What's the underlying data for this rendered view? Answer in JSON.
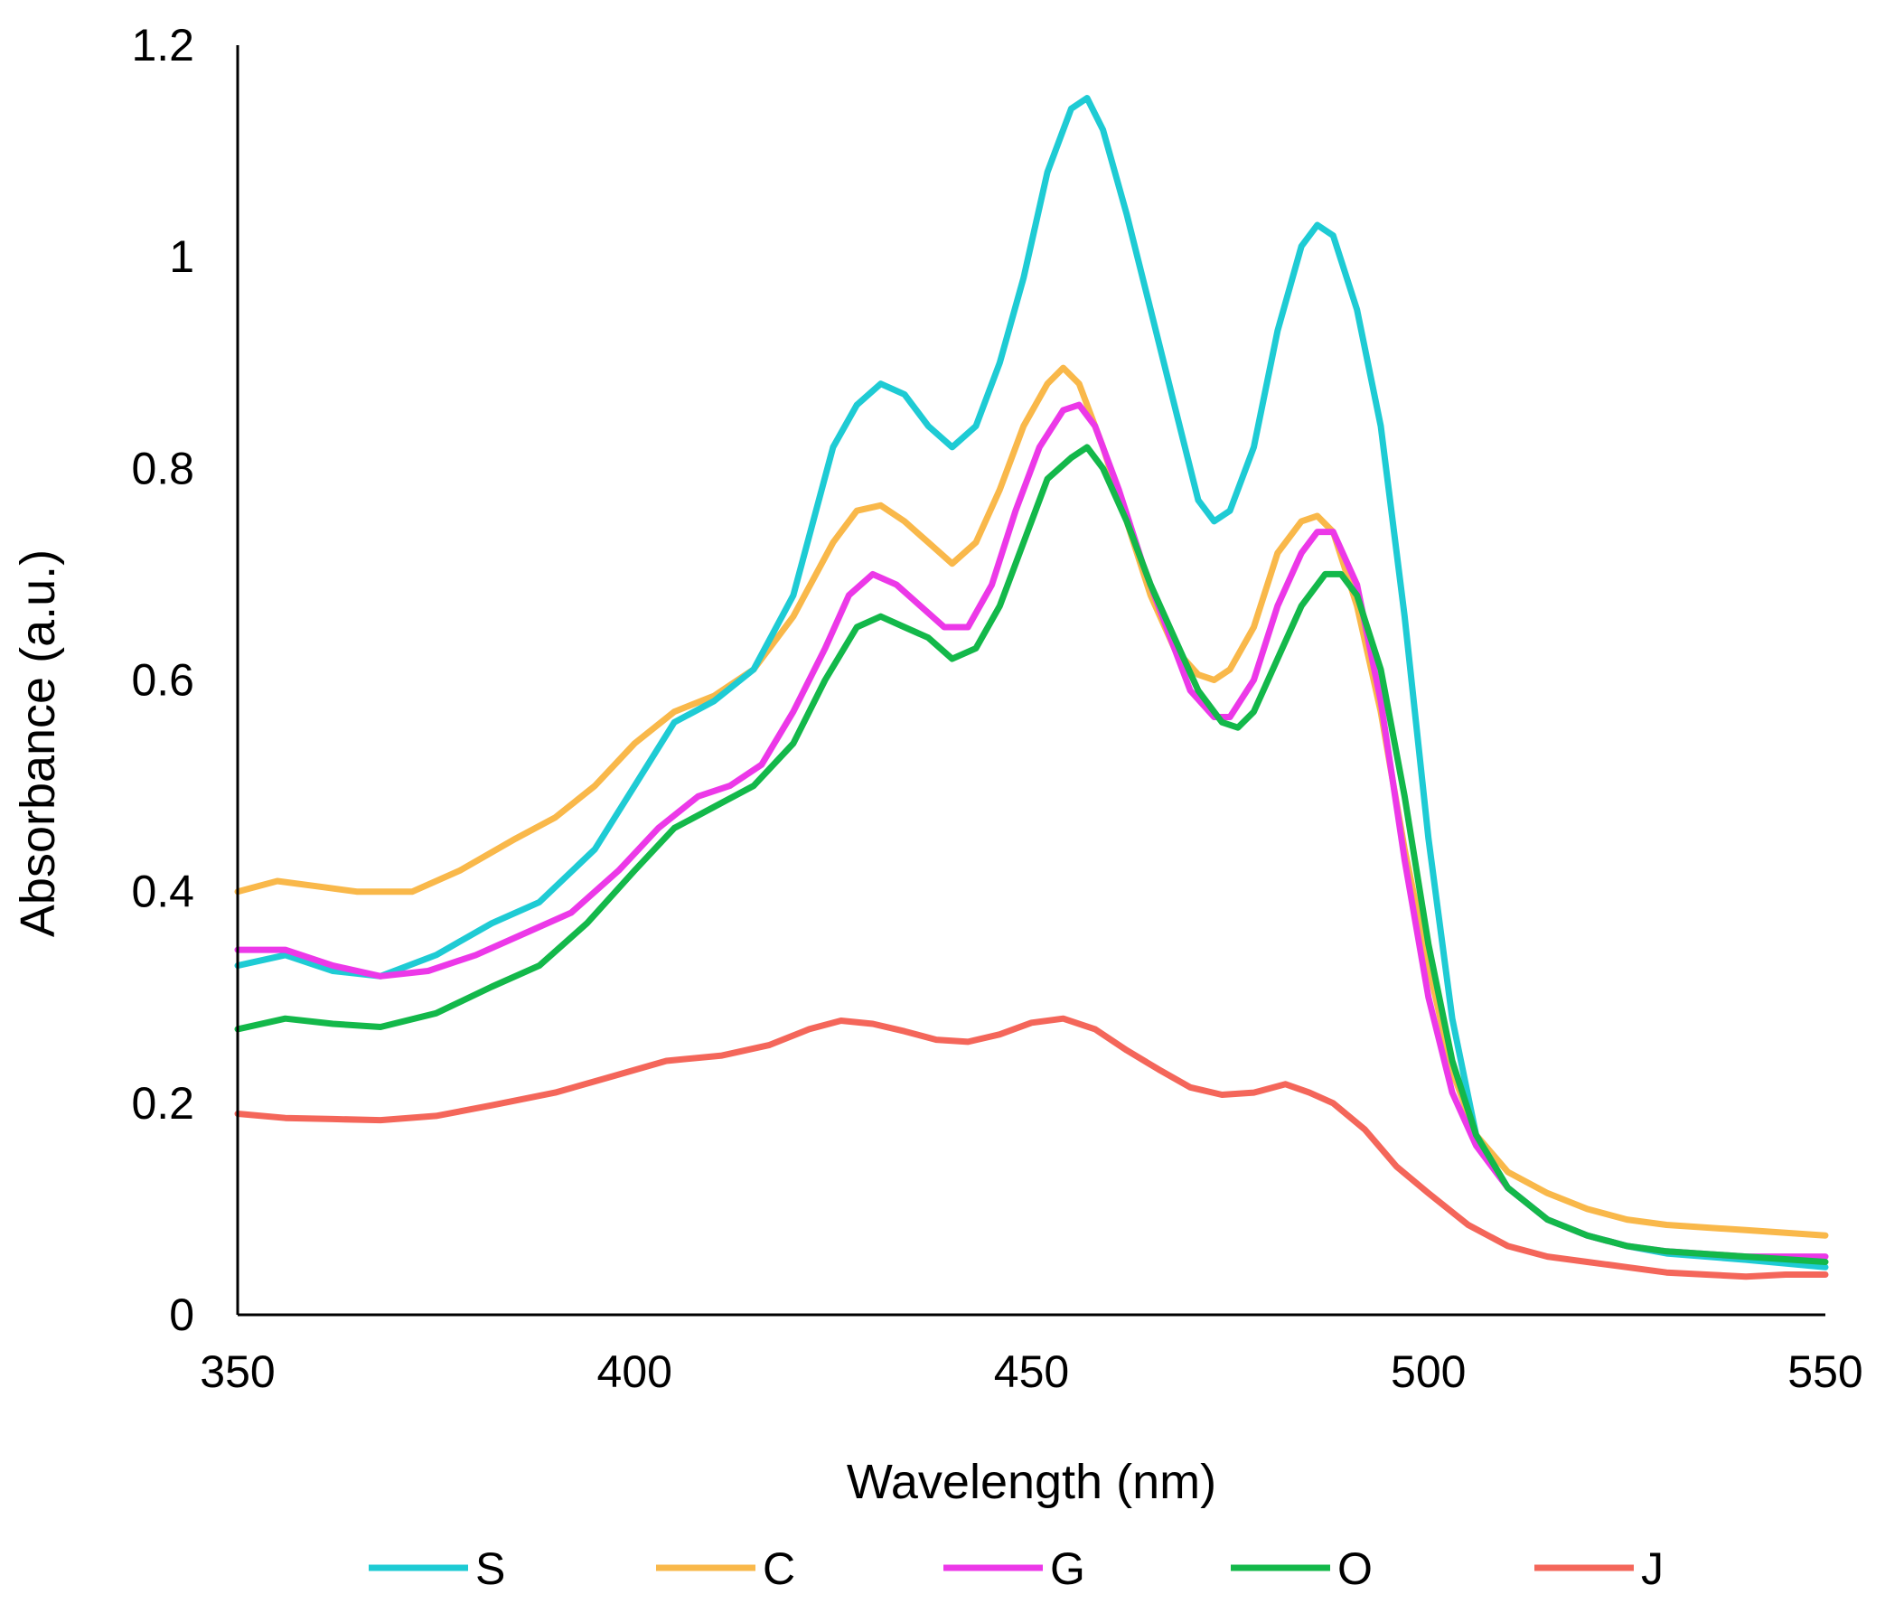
{
  "chart_data": {
    "type": "line",
    "xlabel": "Wavelength (nm)",
    "ylabel": "Absorbance (a.u.)",
    "xlim": [
      350,
      550
    ],
    "ylim": [
      0,
      1.2
    ],
    "xticks": [
      "350",
      "400",
      "450",
      "500",
      "550"
    ],
    "yticks": [
      "0",
      "0.2",
      "0.4",
      "0.6",
      "0.8",
      "1",
      "1.2"
    ],
    "grid": false,
    "legend_position": "bottom",
    "series": [
      {
        "name": "S",
        "color": "#1ecbd4",
        "points": [
          [
            350,
            0.33
          ],
          [
            356,
            0.34
          ],
          [
            362,
            0.325
          ],
          [
            368,
            0.32
          ],
          [
            375,
            0.34
          ],
          [
            382,
            0.37
          ],
          [
            388,
            0.39
          ],
          [
            395,
            0.44
          ],
          [
            400,
            0.5
          ],
          [
            405,
            0.56
          ],
          [
            410,
            0.58
          ],
          [
            415,
            0.61
          ],
          [
            420,
            0.68
          ],
          [
            425,
            0.82
          ],
          [
            428,
            0.86
          ],
          [
            431,
            0.88
          ],
          [
            434,
            0.87
          ],
          [
            437,
            0.84
          ],
          [
            440,
            0.82
          ],
          [
            443,
            0.84
          ],
          [
            446,
            0.9
          ],
          [
            449,
            0.98
          ],
          [
            452,
            1.08
          ],
          [
            455,
            1.14
          ],
          [
            457,
            1.15
          ],
          [
            459,
            1.12
          ],
          [
            462,
            1.04
          ],
          [
            465,
            0.95
          ],
          [
            468,
            0.86
          ],
          [
            471,
            0.77
          ],
          [
            473,
            0.75
          ],
          [
            475,
            0.76
          ],
          [
            478,
            0.82
          ],
          [
            481,
            0.93
          ],
          [
            484,
            1.01
          ],
          [
            486,
            1.03
          ],
          [
            488,
            1.02
          ],
          [
            491,
            0.95
          ],
          [
            494,
            0.84
          ],
          [
            497,
            0.66
          ],
          [
            500,
            0.45
          ],
          [
            503,
            0.28
          ],
          [
            506,
            0.17
          ],
          [
            510,
            0.12
          ],
          [
            515,
            0.09
          ],
          [
            520,
            0.075
          ],
          [
            525,
            0.065
          ],
          [
            530,
            0.058
          ],
          [
            540,
            0.052
          ],
          [
            550,
            0.045
          ]
        ]
      },
      {
        "name": "C",
        "color": "#f9b84a",
        "points": [
          [
            350,
            0.4
          ],
          [
            355,
            0.41
          ],
          [
            360,
            0.405
          ],
          [
            365,
            0.4
          ],
          [
            372,
            0.4
          ],
          [
            378,
            0.42
          ],
          [
            385,
            0.45
          ],
          [
            390,
            0.47
          ],
          [
            395,
            0.5
          ],
          [
            400,
            0.54
          ],
          [
            405,
            0.57
          ],
          [
            410,
            0.585
          ],
          [
            415,
            0.61
          ],
          [
            420,
            0.66
          ],
          [
            425,
            0.73
          ],
          [
            428,
            0.76
          ],
          [
            431,
            0.765
          ],
          [
            434,
            0.75
          ],
          [
            437,
            0.73
          ],
          [
            440,
            0.71
          ],
          [
            443,
            0.73
          ],
          [
            446,
            0.78
          ],
          [
            449,
            0.84
          ],
          [
            452,
            0.88
          ],
          [
            454,
            0.895
          ],
          [
            456,
            0.88
          ],
          [
            459,
            0.82
          ],
          [
            462,
            0.75
          ],
          [
            465,
            0.68
          ],
          [
            468,
            0.63
          ],
          [
            471,
            0.605
          ],
          [
            473,
            0.6
          ],
          [
            475,
            0.61
          ],
          [
            478,
            0.65
          ],
          [
            481,
            0.72
          ],
          [
            484,
            0.75
          ],
          [
            486,
            0.755
          ],
          [
            488,
            0.74
          ],
          [
            491,
            0.67
          ],
          [
            494,
            0.57
          ],
          [
            497,
            0.44
          ],
          [
            500,
            0.33
          ],
          [
            503,
            0.23
          ],
          [
            506,
            0.17
          ],
          [
            510,
            0.135
          ],
          [
            515,
            0.115
          ],
          [
            520,
            0.1
          ],
          [
            525,
            0.09
          ],
          [
            530,
            0.085
          ],
          [
            540,
            0.08
          ],
          [
            550,
            0.075
          ]
        ]
      },
      {
        "name": "G",
        "color": "#ec38e8",
        "points": [
          [
            350,
            0.345
          ],
          [
            356,
            0.345
          ],
          [
            362,
            0.33
          ],
          [
            368,
            0.32
          ],
          [
            374,
            0.325
          ],
          [
            380,
            0.34
          ],
          [
            386,
            0.36
          ],
          [
            392,
            0.38
          ],
          [
            398,
            0.42
          ],
          [
            403,
            0.46
          ],
          [
            408,
            0.49
          ],
          [
            412,
            0.5
          ],
          [
            416,
            0.52
          ],
          [
            420,
            0.57
          ],
          [
            424,
            0.63
          ],
          [
            427,
            0.68
          ],
          [
            430,
            0.7
          ],
          [
            433,
            0.69
          ],
          [
            436,
            0.67
          ],
          [
            439,
            0.65
          ],
          [
            442,
            0.65
          ],
          [
            445,
            0.69
          ],
          [
            448,
            0.76
          ],
          [
            451,
            0.82
          ],
          [
            454,
            0.855
          ],
          [
            456,
            0.86
          ],
          [
            458,
            0.84
          ],
          [
            461,
            0.78
          ],
          [
            464,
            0.71
          ],
          [
            467,
            0.65
          ],
          [
            470,
            0.59
          ],
          [
            473,
            0.565
          ],
          [
            475,
            0.565
          ],
          [
            478,
            0.6
          ],
          [
            481,
            0.67
          ],
          [
            484,
            0.72
          ],
          [
            486,
            0.74
          ],
          [
            488,
            0.74
          ],
          [
            491,
            0.69
          ],
          [
            494,
            0.58
          ],
          [
            497,
            0.43
          ],
          [
            500,
            0.3
          ],
          [
            503,
            0.21
          ],
          [
            506,
            0.16
          ],
          [
            510,
            0.12
          ],
          [
            515,
            0.09
          ],
          [
            520,
            0.075
          ],
          [
            525,
            0.065
          ],
          [
            530,
            0.06
          ],
          [
            540,
            0.055
          ],
          [
            550,
            0.055
          ]
        ]
      },
      {
        "name": "O",
        "color": "#13b84a",
        "points": [
          [
            350,
            0.27
          ],
          [
            356,
            0.28
          ],
          [
            362,
            0.275
          ],
          [
            368,
            0.272
          ],
          [
            375,
            0.285
          ],
          [
            382,
            0.31
          ],
          [
            388,
            0.33
          ],
          [
            394,
            0.37
          ],
          [
            400,
            0.42
          ],
          [
            405,
            0.46
          ],
          [
            410,
            0.48
          ],
          [
            415,
            0.5
          ],
          [
            420,
            0.54
          ],
          [
            424,
            0.6
          ],
          [
            428,
            0.65
          ],
          [
            431,
            0.66
          ],
          [
            434,
            0.65
          ],
          [
            437,
            0.64
          ],
          [
            440,
            0.62
          ],
          [
            443,
            0.63
          ],
          [
            446,
            0.67
          ],
          [
            449,
            0.73
          ],
          [
            452,
            0.79
          ],
          [
            455,
            0.81
          ],
          [
            457,
            0.82
          ],
          [
            459,
            0.8
          ],
          [
            462,
            0.75
          ],
          [
            465,
            0.69
          ],
          [
            468,
            0.64
          ],
          [
            471,
            0.59
          ],
          [
            474,
            0.56
          ],
          [
            476,
            0.555
          ],
          [
            478,
            0.57
          ],
          [
            481,
            0.62
          ],
          [
            484,
            0.67
          ],
          [
            487,
            0.7
          ],
          [
            489,
            0.7
          ],
          [
            491,
            0.68
          ],
          [
            494,
            0.61
          ],
          [
            497,
            0.49
          ],
          [
            500,
            0.35
          ],
          [
            503,
            0.24
          ],
          [
            506,
            0.17
          ],
          [
            510,
            0.12
          ],
          [
            515,
            0.09
          ],
          [
            520,
            0.075
          ],
          [
            525,
            0.065
          ],
          [
            530,
            0.06
          ],
          [
            540,
            0.055
          ],
          [
            550,
            0.05
          ]
        ]
      },
      {
        "name": "J",
        "color": "#f4665a",
        "points": [
          [
            350,
            0.19
          ],
          [
            356,
            0.186
          ],
          [
            362,
            0.185
          ],
          [
            368,
            0.184
          ],
          [
            375,
            0.188
          ],
          [
            382,
            0.198
          ],
          [
            390,
            0.21
          ],
          [
            397,
            0.225
          ],
          [
            404,
            0.24
          ],
          [
            411,
            0.245
          ],
          [
            417,
            0.255
          ],
          [
            422,
            0.27
          ],
          [
            426,
            0.278
          ],
          [
            430,
            0.275
          ],
          [
            434,
            0.268
          ],
          [
            438,
            0.26
          ],
          [
            442,
            0.258
          ],
          [
            446,
            0.265
          ],
          [
            450,
            0.276
          ],
          [
            454,
            0.28
          ],
          [
            458,
            0.27
          ],
          [
            462,
            0.25
          ],
          [
            466,
            0.232
          ],
          [
            470,
            0.215
          ],
          [
            474,
            0.208
          ],
          [
            478,
            0.21
          ],
          [
            482,
            0.218
          ],
          [
            485,
            0.21
          ],
          [
            488,
            0.2
          ],
          [
            492,
            0.175
          ],
          [
            496,
            0.14
          ],
          [
            500,
            0.115
          ],
          [
            505,
            0.085
          ],
          [
            510,
            0.065
          ],
          [
            515,
            0.055
          ],
          [
            520,
            0.05
          ],
          [
            525,
            0.045
          ],
          [
            530,
            0.04
          ],
          [
            535,
            0.038
          ],
          [
            540,
            0.036
          ],
          [
            545,
            0.038
          ],
          [
            550,
            0.038
          ]
        ]
      }
    ]
  }
}
